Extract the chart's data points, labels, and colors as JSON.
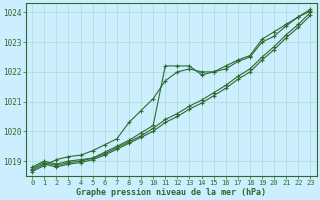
{
  "title": "Graphe pression niveau de la mer (hPa)",
  "bg_color": "#cceeff",
  "grid_color": "#aaddcc",
  "line_color": "#2d6a2d",
  "marker": "+",
  "xlim": [
    -0.5,
    23.5
  ],
  "ylim": [
    1018.5,
    1024.3
  ],
  "yticks": [
    1019,
    1020,
    1021,
    1022,
    1023,
    1024
  ],
  "xticks": [
    0,
    1,
    2,
    3,
    4,
    5,
    6,
    7,
    8,
    9,
    10,
    11,
    12,
    13,
    14,
    15,
    16,
    17,
    18,
    19,
    20,
    21,
    22,
    23
  ],
  "series": [
    [
      1018.8,
      1019.0,
      1018.9,
      1019.0,
      1019.05,
      1019.1,
      1019.3,
      1019.5,
      1019.7,
      1019.95,
      1020.2,
      1022.2,
      1022.2,
      1022.2,
      1021.9,
      1022.0,
      1022.2,
      1022.4,
      1022.55,
      1023.1,
      1023.35,
      1023.6,
      1023.85,
      1024.05
    ],
    [
      1018.75,
      1018.95,
      1018.85,
      1018.95,
      1019.0,
      1019.1,
      1019.25,
      1019.45,
      1019.65,
      1019.85,
      1020.1,
      1020.4,
      1020.6,
      1020.85,
      1021.05,
      1021.3,
      1021.55,
      1021.85,
      1022.1,
      1022.5,
      1022.85,
      1023.25,
      1023.6,
      1024.0
    ],
    [
      1018.7,
      1018.9,
      1018.8,
      1018.9,
      1018.95,
      1019.05,
      1019.2,
      1019.4,
      1019.6,
      1019.8,
      1020.0,
      1020.3,
      1020.5,
      1020.75,
      1020.95,
      1021.2,
      1021.45,
      1021.75,
      1022.0,
      1022.4,
      1022.75,
      1023.15,
      1023.5,
      1023.9
    ],
    [
      1018.65,
      1018.85,
      1019.05,
      1019.15,
      1019.2,
      1019.35,
      1019.55,
      1019.75,
      1020.3,
      1020.7,
      1021.1,
      1021.7,
      1022.0,
      1022.1,
      1022.0,
      1022.0,
      1022.1,
      1022.35,
      1022.5,
      1023.0,
      1023.2,
      1023.55,
      1023.85,
      1024.1
    ]
  ]
}
